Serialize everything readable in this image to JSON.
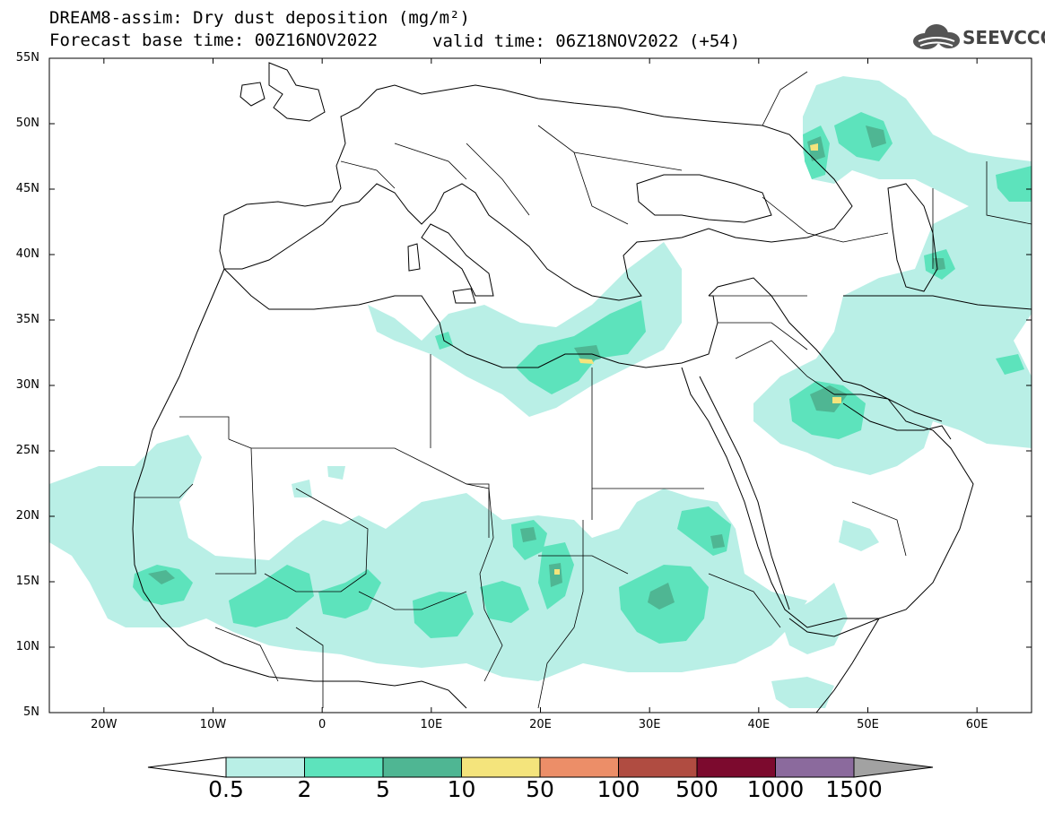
{
  "header": {
    "title": "DREAM8-assim: Dry dust deposition (mg/m²)",
    "base_time": "Forecast base time: 00Z16NOV2022",
    "valid_time": "valid time: 06Z18NOV2022 (+54)",
    "logo_text": "SEEVCCC",
    "logo_icon": "cloud-logo-icon"
  },
  "map": {
    "lon_range": [
      -25,
      65
    ],
    "lat_range": [
      5,
      55
    ],
    "lat_ticks": [
      {
        "value": 55,
        "label": "55N"
      },
      {
        "value": 50,
        "label": "50N"
      },
      {
        "value": 45,
        "label": "45N"
      },
      {
        "value": 40,
        "label": "40N"
      },
      {
        "value": 35,
        "label": "35N"
      },
      {
        "value": 30,
        "label": "30N"
      },
      {
        "value": 25,
        "label": "25N"
      },
      {
        "value": 20,
        "label": "20N"
      },
      {
        "value": 15,
        "label": "15N"
      },
      {
        "value": 10,
        "label": "10N"
      },
      {
        "value": 5,
        "label": "5N"
      }
    ],
    "lon_ticks": [
      {
        "value": -20,
        "label": "20W"
      },
      {
        "value": -10,
        "label": "10W"
      },
      {
        "value": 0,
        "label": "0"
      },
      {
        "value": 10,
        "label": "10E"
      },
      {
        "value": 20,
        "label": "20E"
      },
      {
        "value": 30,
        "label": "30E"
      },
      {
        "value": 40,
        "label": "40E"
      },
      {
        "value": 50,
        "label": "50E"
      },
      {
        "value": 60,
        "label": "60E"
      }
    ],
    "coast_color": "#000000"
  },
  "colorbar": {
    "labels": [
      "0.5",
      "2",
      "5",
      "10",
      "50",
      "100",
      "500",
      "1000",
      "1500"
    ],
    "colors": [
      "#ffffff",
      "#b9efe6",
      "#5de3bc",
      "#4fb693",
      "#f4e47c",
      "#ec8e68",
      "#b04c41",
      "#7c0a2e",
      "#8b6a9d",
      "#a2a2a2"
    ]
  }
}
